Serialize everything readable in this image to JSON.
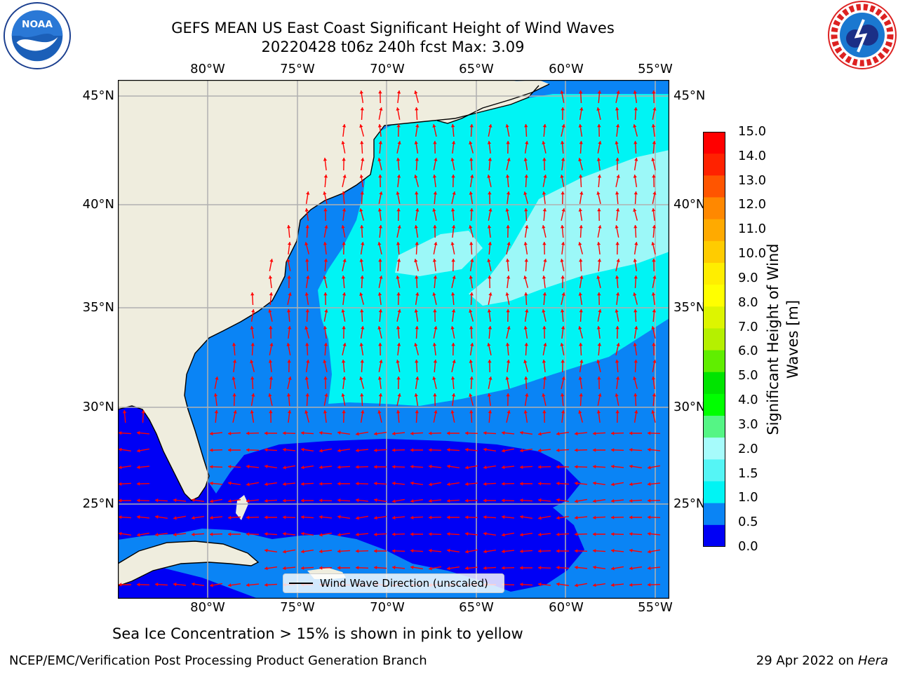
{
  "title": {
    "line1": "GEFS MEAN US East Coast Significant Height of Wind Waves",
    "line2": "20220428 t06z 240h fcst   Max: 3.09"
  },
  "map": {
    "lon_labels": [
      "80°W",
      "75°W",
      "70°W",
      "65°W",
      "60°W",
      "55°W"
    ],
    "lat_labels": [
      "45°N",
      "40°N",
      "35°N",
      "30°N",
      "25°N"
    ],
    "colors": {
      "land": "#efedde",
      "level_0": "#0000f5",
      "level_1": "#0a84f5",
      "level_2": "#00f4f4",
      "level_3": "#9cf8f8",
      "arrow": "#ff0000",
      "grid": "#b0b0b0",
      "coast": "#000000"
    }
  },
  "colorbar": {
    "label": "Significant Height of Wind Waves [m]",
    "ticks": [
      "15.0",
      "14.0",
      "13.0",
      "12.0",
      "11.0",
      "10.0",
      "9.0",
      "8.0",
      "7.0",
      "6.0",
      "5.0",
      "4.0",
      "3.0",
      "2.0",
      "1.5",
      "1.0",
      "0.5",
      "0.0"
    ],
    "colors": [
      "#ff0000",
      "#ff2200",
      "#ff5500",
      "#ff8800",
      "#ffaa00",
      "#ffcc00",
      "#ffee00",
      "#ffff00",
      "#ddf500",
      "#b5f000",
      "#60ee00",
      "#00e400",
      "#00ff00",
      "#55f585",
      "#a6fbfb",
      "#55f5f5",
      "#00f4f4",
      "#0a84f5",
      "#0000f5"
    ]
  },
  "legend": {
    "label": "Wind Wave Direction (unscaled)"
  },
  "note": "Sea Ice Concentration > 15% is shown in pink to yellow",
  "footer": {
    "left": "NCEP/EMC/Verification Post Processing Product Generation Branch",
    "right_date": "29 Apr 2022 on ",
    "right_host": "Hera"
  }
}
